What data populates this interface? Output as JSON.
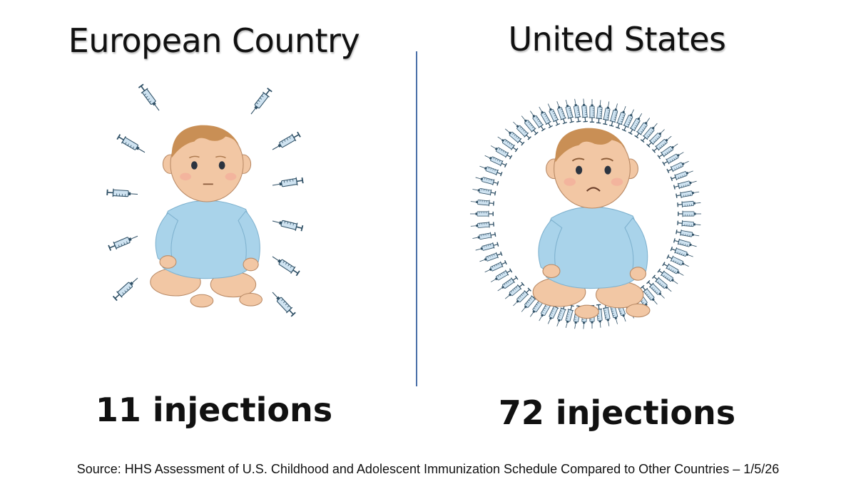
{
  "left": {
    "heading": "European Country",
    "count_label": "11 injections",
    "injections": 11,
    "baby_expression": "neutral"
  },
  "right": {
    "heading": "United States",
    "count_label": "72 injections",
    "injections": 72,
    "baby_expression": "sad"
  },
  "source": "Source: HHS Assessment of U.S. Childhood and Adolescent Immunization Schedule Compared to Other Countries – 1/5/26",
  "colors": {
    "syringe_body": "#cfe3f1",
    "syringe_outline": "#2f5066",
    "onesie": "#a9d3ea",
    "skin": "#f2c7a4",
    "hair": "#c98f55",
    "divider": "#4a6fa8"
  }
}
